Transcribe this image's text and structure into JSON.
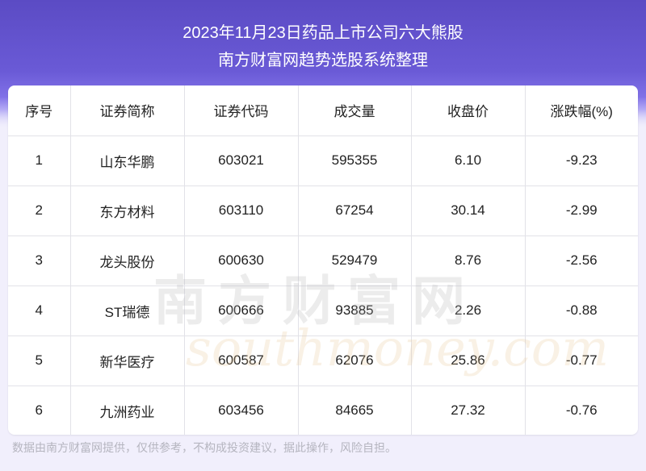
{
  "header": {
    "title": "2023年11月23日药品上市公司六大熊股",
    "subtitle": "南方财富网趋势选股系统整理"
  },
  "table": {
    "columns": [
      "序号",
      "证券简称",
      "证券代码",
      "成交量",
      "收盘价",
      "涨跌幅(%)"
    ],
    "rows": [
      [
        "1",
        "山东华鹏",
        "603021",
        "595355",
        "6.10",
        "-9.23"
      ],
      [
        "2",
        "东方材料",
        "603110",
        "67254",
        "30.14",
        "-2.99"
      ],
      [
        "3",
        "龙头股份",
        "600630",
        "529479",
        "8.76",
        "-2.56"
      ],
      [
        "4",
        "ST瑞德",
        "600666",
        "93885",
        "2.26",
        "-0.88"
      ],
      [
        "5",
        "新华医疗",
        "600587",
        "62076",
        "25.86",
        "-0.77"
      ],
      [
        "6",
        "九洲药业",
        "603456",
        "84665",
        "27.32",
        "-0.76"
      ]
    ]
  },
  "watermark": {
    "cn": "南方财富网",
    "en": "southmoney.com"
  },
  "footer": {
    "disclaimer": "数据由南方财富网提供，仅供参考，不构成投资建议，据此操作，风险自担。"
  }
}
